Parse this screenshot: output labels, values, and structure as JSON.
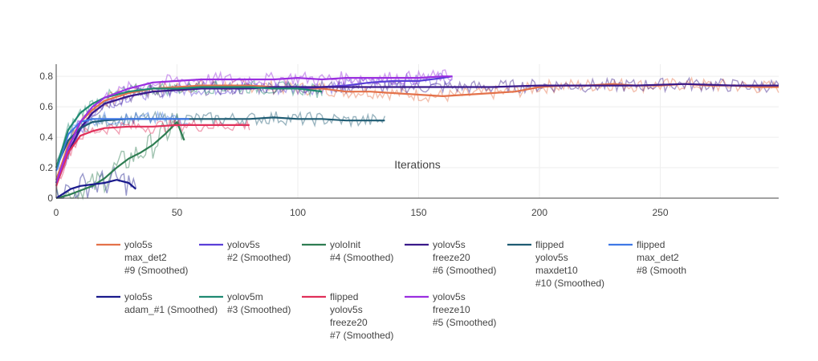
{
  "chart_data": {
    "type": "line",
    "title": "",
    "xlabel": "Iterations",
    "ylabel": "",
    "xlim": [
      0,
      299
    ],
    "ylim": [
      0,
      0.88
    ],
    "xticks": [
      0,
      50,
      100,
      150,
      200,
      250
    ],
    "yticks": [
      0,
      0.2,
      0.4,
      0.6,
      0.8
    ],
    "xtick_labels": [
      "0",
      "50",
      "100",
      "150",
      "200",
      "250"
    ],
    "ytick_labels": [
      "0",
      "0.2",
      "0.4",
      "0.6",
      "0.8"
    ],
    "grid": true,
    "legend_position": "bottom",
    "series": [
      {
        "name_lines": [
          "yolo5s",
          "max_det2",
          "#9 (Smoothed)"
        ],
        "color": "#e4724a",
        "x": [
          0,
          5,
          10,
          15,
          20,
          30,
          40,
          50,
          60,
          70,
          80,
          90,
          100,
          110,
          120,
          130,
          140,
          150,
          160,
          170,
          180,
          190,
          200,
          210,
          220,
          230,
          240,
          250,
          260,
          270,
          280,
          290,
          299
        ],
        "y": [
          0.12,
          0.35,
          0.5,
          0.58,
          0.64,
          0.69,
          0.72,
          0.73,
          0.74,
          0.74,
          0.74,
          0.73,
          0.72,
          0.72,
          0.7,
          0.7,
          0.69,
          0.68,
          0.67,
          0.68,
          0.69,
          0.7,
          0.73,
          0.74,
          0.74,
          0.75,
          0.74,
          0.74,
          0.75,
          0.74,
          0.74,
          0.73,
          0.73
        ]
      },
      {
        "name_lines": [
          "yolov5s",
          "#2 (Smoothed)"
        ],
        "color": "#5a3fd8",
        "x": [
          0,
          5,
          10,
          15,
          20,
          30,
          40,
          50,
          60,
          70,
          80,
          90,
          100,
          110,
          120,
          130,
          140,
          150,
          160,
          164
        ],
        "y": [
          0.1,
          0.3,
          0.45,
          0.56,
          0.62,
          0.67,
          0.7,
          0.71,
          0.72,
          0.72,
          0.73,
          0.72,
          0.72,
          0.73,
          0.74,
          0.76,
          0.77,
          0.77,
          0.79,
          0.8
        ]
      },
      {
        "name_lines": [
          "yoloInit",
          "#4 (Smoothed)"
        ],
        "color": "#2e7d52",
        "x": [
          0,
          5,
          10,
          15,
          20,
          25,
          30,
          35,
          40,
          45,
          50,
          53
        ],
        "y": [
          0,
          0.02,
          0.05,
          0.08,
          0.13,
          0.2,
          0.26,
          0.3,
          0.35,
          0.42,
          0.5,
          0.38
        ]
      },
      {
        "name_lines": [
          "yolov5s",
          "freeze20",
          "#6 (Smoothed)"
        ],
        "color": "#3a1a8a",
        "x": [
          0,
          5,
          10,
          15,
          20,
          30,
          40,
          50,
          60,
          70,
          80,
          90,
          100,
          120,
          140,
          160,
          180,
          200,
          220,
          240,
          260,
          280,
          299
        ],
        "y": [
          0.1,
          0.3,
          0.46,
          0.56,
          0.62,
          0.67,
          0.7,
          0.71,
          0.72,
          0.72,
          0.72,
          0.73,
          0.73,
          0.73,
          0.73,
          0.73,
          0.73,
          0.74,
          0.74,
          0.74,
          0.75,
          0.74,
          0.74
        ]
      },
      {
        "name_lines": [
          "flipped",
          "yolov5s",
          "maxdet10",
          "#10 (Smoothed)"
        ],
        "color": "#1f5c73",
        "x": [
          0,
          5,
          10,
          15,
          20,
          30,
          40,
          50,
          60,
          70,
          80,
          90,
          100,
          110,
          120,
          130,
          136
        ],
        "y": [
          0.2,
          0.38,
          0.46,
          0.5,
          0.51,
          0.52,
          0.52,
          0.52,
          0.52,
          0.52,
          0.52,
          0.53,
          0.52,
          0.52,
          0.51,
          0.51,
          0.51
        ]
      },
      {
        "name_lines": [
          "flipped",
          "max_det2",
          "#8 (Smooth"
        ],
        "color": "#3f78e6",
        "x": [
          0,
          5,
          10,
          15,
          20,
          30,
          40,
          50,
          55
        ],
        "y": [
          0.18,
          0.42,
          0.5,
          0.52,
          0.52,
          0.52,
          0.52,
          0.52,
          0.52
        ]
      },
      {
        "name_lines": [
          "yolo5s",
          "adam_#1 (Smoothed)"
        ],
        "color": "#1a1a8c",
        "x": [
          0,
          3,
          6,
          10,
          15,
          20,
          25,
          30,
          33
        ],
        "y": [
          0,
          0.03,
          0.06,
          0.08,
          0.09,
          0.1,
          0.12,
          0.1,
          0.06
        ]
      },
      {
        "name_lines": [
          "yolov5m",
          "#3 (Smoothed)"
        ],
        "color": "#1f8a72",
        "x": [
          0,
          5,
          10,
          15,
          20,
          30,
          40,
          50,
          60,
          70,
          80,
          90,
          100,
          110
        ],
        "y": [
          0.2,
          0.45,
          0.56,
          0.62,
          0.66,
          0.7,
          0.72,
          0.72,
          0.73,
          0.73,
          0.73,
          0.72,
          0.72,
          0.7
        ]
      },
      {
        "name_lines": [
          "flipped",
          "yolov5s",
          "freeze20",
          "#7 (Smoothed)"
        ],
        "color": "#e0305a",
        "x": [
          0,
          5,
          10,
          15,
          20,
          30,
          40,
          50,
          60,
          70,
          80
        ],
        "y": [
          0.08,
          0.3,
          0.41,
          0.44,
          0.46,
          0.47,
          0.47,
          0.48,
          0.48,
          0.48,
          0.48
        ]
      },
      {
        "name_lines": [
          "yolov5s",
          "freeze10",
          "#5 (Smoothed)"
        ],
        "color": "#9a2fe0",
        "x": [
          0,
          5,
          10,
          15,
          20,
          30,
          40,
          50,
          60,
          70,
          80,
          90,
          100,
          110,
          120,
          130,
          140,
          150,
          160,
          164
        ],
        "y": [
          0.1,
          0.33,
          0.5,
          0.6,
          0.66,
          0.72,
          0.76,
          0.77,
          0.78,
          0.78,
          0.78,
          0.78,
          0.79,
          0.78,
          0.79,
          0.79,
          0.79,
          0.79,
          0.8,
          0.8
        ]
      }
    ]
  }
}
